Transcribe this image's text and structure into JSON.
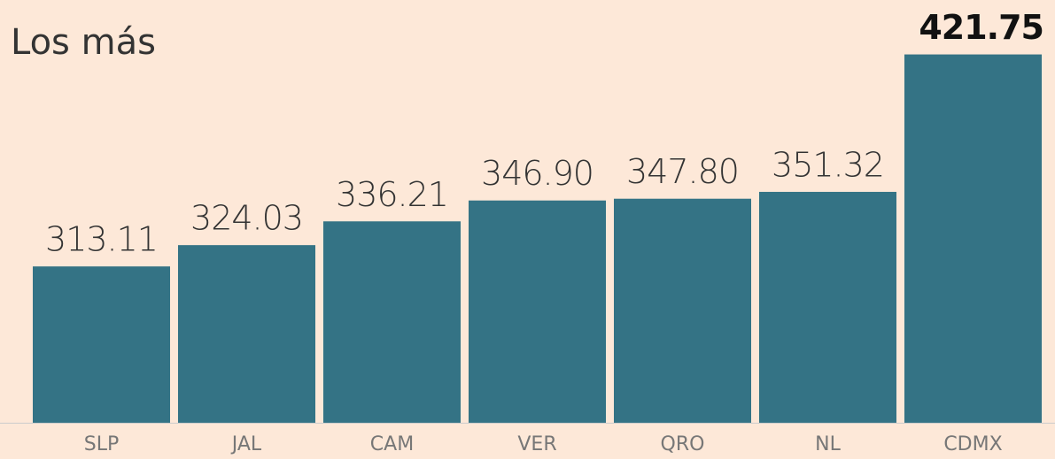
{
  "chart_data": {
    "type": "bar",
    "title": "Los más",
    "categories": [
      "SLP",
      "JAL",
      "CAM",
      "VER",
      "QRO",
      "NL",
      "CDMX"
    ],
    "values": [
      313.11,
      324.03,
      336.21,
      346.9,
      347.8,
      351.32,
      421.75
    ],
    "value_labels": [
      "313.11",
      "324.03",
      "336.21",
      "346.90",
      "347.80",
      "351.32",
      "421.75"
    ],
    "color": "#347385",
    "ylim": [
      233,
      422
    ]
  }
}
